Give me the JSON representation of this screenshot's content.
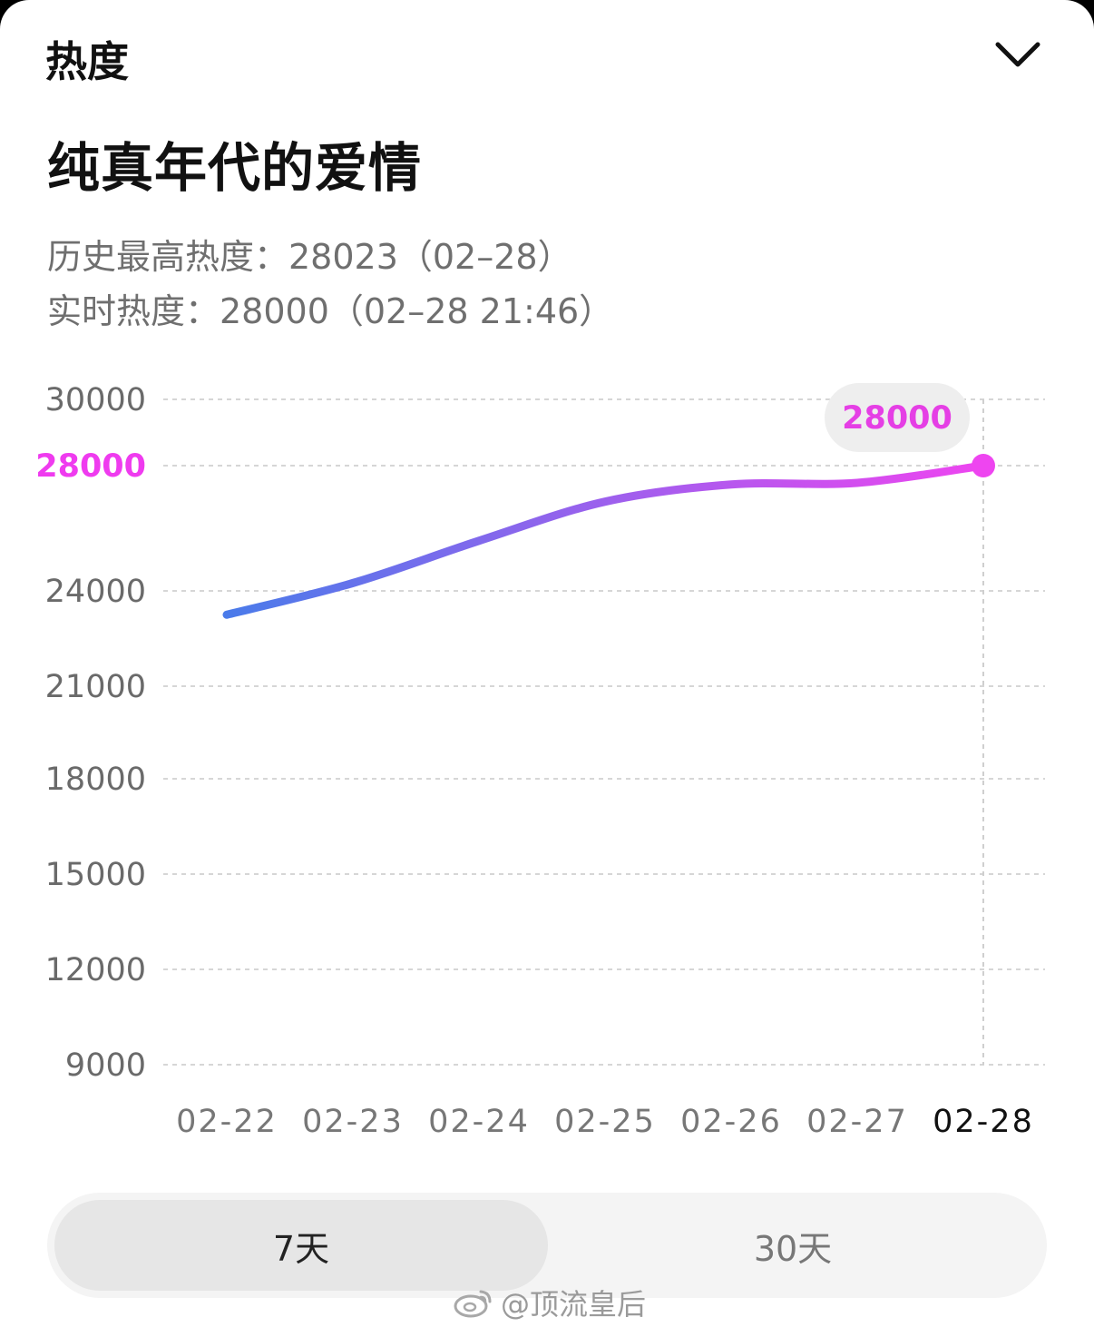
{
  "header": {
    "title": "热度",
    "collapse_icon": "chevron-down-icon"
  },
  "topic": {
    "title": "纯真年代的爱情"
  },
  "stats": {
    "history_high": "历史最高热度：28023（02–28）",
    "realtime": "实时热度：28000（02–28 21:46）"
  },
  "colors": {
    "line_start": "#4a7bea",
    "line_end": "#ee45f0",
    "highlight": "#ef3bef"
  },
  "chart_data": {
    "type": "line",
    "categories": [
      "02-22",
      "02-23",
      "02-24",
      "02-25",
      "02-26",
      "02-27",
      "02-28"
    ],
    "values": [
      23250,
      24250,
      25600,
      26850,
      27400,
      27450,
      28000
    ],
    "y_ticks": [
      "30000",
      "28000",
      "24000",
      "21000",
      "18000",
      "15000",
      "12000",
      "9000"
    ],
    "highlight_tick": "28000",
    "highlight_value": "28000",
    "active_category": "02-28",
    "grid": "dashed-horizontal"
  },
  "range_tabs": [
    {
      "label": "7天",
      "active": true
    },
    {
      "label": "30天",
      "active": false
    }
  ],
  "watermark": {
    "text": "@顶流皇后",
    "icon": "weibo-icon"
  }
}
